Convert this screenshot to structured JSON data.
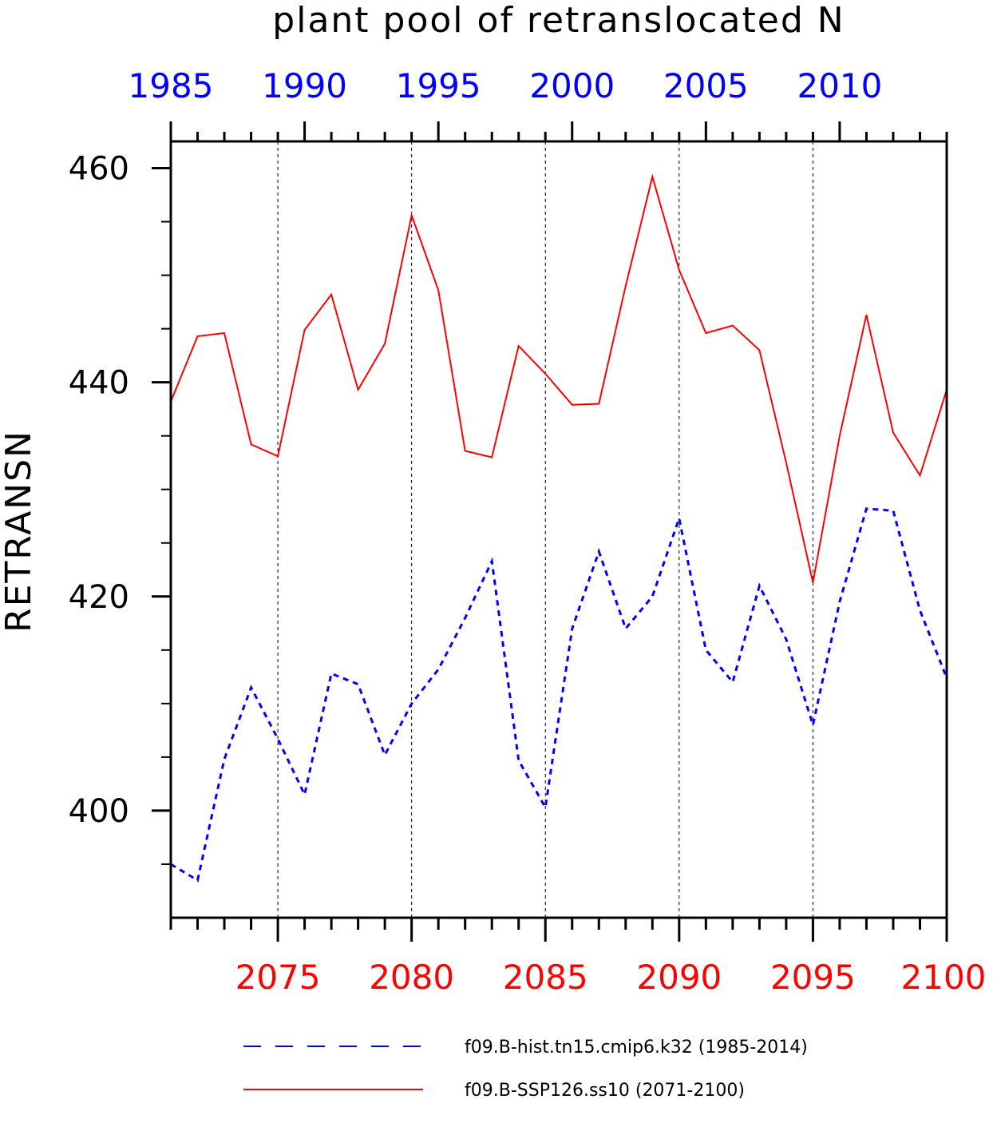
{
  "chart_data": {
    "type": "line",
    "title": "plant pool of retranslocated N",
    "ylabel": "RETRANSN",
    "xlabel": "",
    "ylim": [
      390,
      462.5
    ],
    "yticks_major": [
      400,
      420,
      440,
      460
    ],
    "yticks_minor": [
      395,
      405,
      410,
      415,
      425,
      430,
      435,
      445,
      450,
      455
    ],
    "grid": "vertical dashed at major bottom-axis ticks",
    "bottom_axis": {
      "range": [
        2071,
        2100
      ],
      "ticks": [
        2075,
        2080,
        2085,
        2090,
        2095,
        2100
      ],
      "tick_labels": [
        "2075",
        "2080",
        "2085",
        "2090",
        "2095",
        "2100"
      ],
      "color": "#ff0000"
    },
    "top_axis": {
      "range": [
        1985,
        2014
      ],
      "ticks": [
        1985,
        1990,
        1995,
        2000,
        2005,
        2010
      ],
      "tick_labels": [
        "1985",
        "1990",
        "1995",
        "2000",
        "2005",
        "2010"
      ],
      "color": "#0000ff"
    },
    "legend_position": "bottom",
    "series": [
      {
        "name": "f09.B-hist.tn15.cmip6.k32 (1985-2014)",
        "axis": "top",
        "color": "#0000ff",
        "style": "dashed",
        "x": [
          1985,
          1986,
          1987,
          1988,
          1989,
          1990,
          1991,
          1992,
          1993,
          1994,
          1995,
          1996,
          1997,
          1998,
          1999,
          2000,
          2001,
          2002,
          2003,
          2004,
          2005,
          2006,
          2007,
          2008,
          2009,
          2010,
          2011,
          2012,
          2013,
          2014
        ],
        "values": [
          395.0,
          393.5,
          404.8,
          411.5,
          406.7,
          401.5,
          412.8,
          411.8,
          405.2,
          410.0,
          413.2,
          418.0,
          423.3,
          404.7,
          400.3,
          417.0,
          424.2,
          417.0,
          420.0,
          427.3,
          415.0,
          412.0,
          421.0,
          416.0,
          408.0,
          419.5,
          428.2,
          428.0,
          418.7,
          412.4
        ]
      },
      {
        "name": "f09.B-SSP126.ss10 (2071-2100)",
        "axis": "bottom",
        "color": "#ff0000",
        "style": "solid",
        "x": [
          2071,
          2072,
          2073,
          2074,
          2075,
          2076,
          2077,
          2078,
          2079,
          2080,
          2081,
          2082,
          2083,
          2084,
          2085,
          2086,
          2087,
          2088,
          2089,
          2090,
          2091,
          2092,
          2093,
          2094,
          2095,
          2096,
          2097,
          2098,
          2099,
          2100
        ],
        "values": [
          438.2,
          444.3,
          444.6,
          434.2,
          433.1,
          444.9,
          448.2,
          439.3,
          443.6,
          455.6,
          448.6,
          433.6,
          433.0,
          443.4,
          440.8,
          437.9,
          438.0,
          449.0,
          459.2,
          450.5,
          444.6,
          445.3,
          443.0,
          432.5,
          421.3,
          435.0,
          446.3,
          435.3,
          431.3,
          439.3
        ]
      }
    ]
  }
}
